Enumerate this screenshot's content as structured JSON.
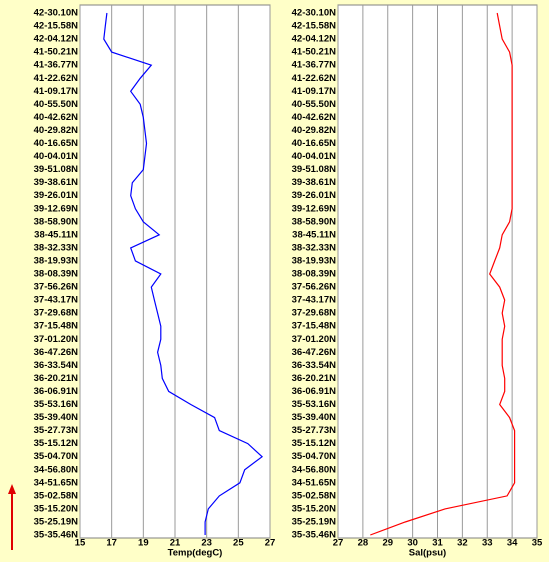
{
  "chart_data": [
    {
      "type": "line",
      "orientation": "horizontal",
      "xlabel": "Temp(degC)",
      "color": "#0000ff",
      "grid": true,
      "xlim": [
        15,
        27
      ],
      "xticks": [
        15,
        17,
        19,
        21,
        23,
        25,
        27
      ],
      "categories": [
        "42-30.10N",
        "42-15.58N",
        "42-04.12N",
        "41-50.21N",
        "41-36.77N",
        "41-22.62N",
        "41-09.17N",
        "40-55.50N",
        "40-42.62N",
        "40-29.82N",
        "40-16.65N",
        "40-04.01N",
        "39-51.08N",
        "39-38.61N",
        "39-26.01N",
        "39-12.69N",
        "38-58.90N",
        "38-45.11N",
        "38-32.33N",
        "38-19.93N",
        "38-08.39N",
        "37-56.26N",
        "37-43.17N",
        "37-29.68N",
        "37-15.48N",
        "37-01.20N",
        "36-47.26N",
        "36-33.54N",
        "36-20.21N",
        "36-06.91N",
        "35-53.16N",
        "35-39.40N",
        "35-27.73N",
        "35-15.12N",
        "35-04.70N",
        "34-56.80N",
        "34-51.65N",
        "35-02.58N",
        "35-15.20N",
        "35-25.19N",
        "35-35.46N"
      ],
      "values": [
        16.7,
        16.6,
        16.5,
        17.0,
        19.5,
        18.8,
        18.2,
        18.8,
        19.0,
        19.1,
        19.2,
        19.1,
        19.0,
        18.3,
        18.2,
        18.5,
        19.0,
        20.0,
        18.2,
        18.5,
        20.1,
        19.5,
        19.7,
        19.9,
        20.1,
        20.1,
        19.9,
        20.1,
        20.2,
        20.6,
        22.0,
        23.5,
        23.8,
        25.6,
        26.5,
        25.4,
        25.1,
        23.8,
        23.1,
        22.9,
        22.9
      ]
    },
    {
      "type": "line",
      "orientation": "horizontal",
      "xlabel": "Sal(psu)",
      "color": "#ff0000",
      "grid": true,
      "xlim": [
        27,
        35
      ],
      "xticks": [
        27,
        28,
        29,
        30,
        31,
        32,
        33,
        34,
        35
      ],
      "categories": [
        "42-30.10N",
        "42-15.58N",
        "42-04.12N",
        "41-50.21N",
        "41-36.77N",
        "41-22.62N",
        "41-09.17N",
        "40-55.50N",
        "40-42.62N",
        "40-29.82N",
        "40-16.65N",
        "40-04.01N",
        "39-51.08N",
        "39-38.61N",
        "39-26.01N",
        "39-12.69N",
        "38-58.90N",
        "38-45.11N",
        "38-32.33N",
        "38-19.93N",
        "38-08.39N",
        "37-56.26N",
        "37-43.17N",
        "37-29.68N",
        "37-15.48N",
        "37-01.20N",
        "36-47.26N",
        "36-33.54N",
        "36-20.21N",
        "36-06.91N",
        "35-53.16N",
        "35-39.40N",
        "35-27.73N",
        "35-15.12N",
        "35-04.70N",
        "34-56.80N",
        "34-51.65N",
        "35-02.58N",
        "35-15.20N",
        "35-25.19N",
        "35-35.46N"
      ],
      "values": [
        33.4,
        33.5,
        33.6,
        33.9,
        34.0,
        34.0,
        34.0,
        34.0,
        34.0,
        34.0,
        34.0,
        34.0,
        34.0,
        34.0,
        34.0,
        34.0,
        33.9,
        33.6,
        33.5,
        33.3,
        33.1,
        33.5,
        33.7,
        33.6,
        33.7,
        33.6,
        33.6,
        33.6,
        33.7,
        33.7,
        33.5,
        33.9,
        34.1,
        34.1,
        34.1,
        34.1,
        34.1,
        33.8,
        31.3,
        29.7,
        28.3
      ]
    }
  ]
}
